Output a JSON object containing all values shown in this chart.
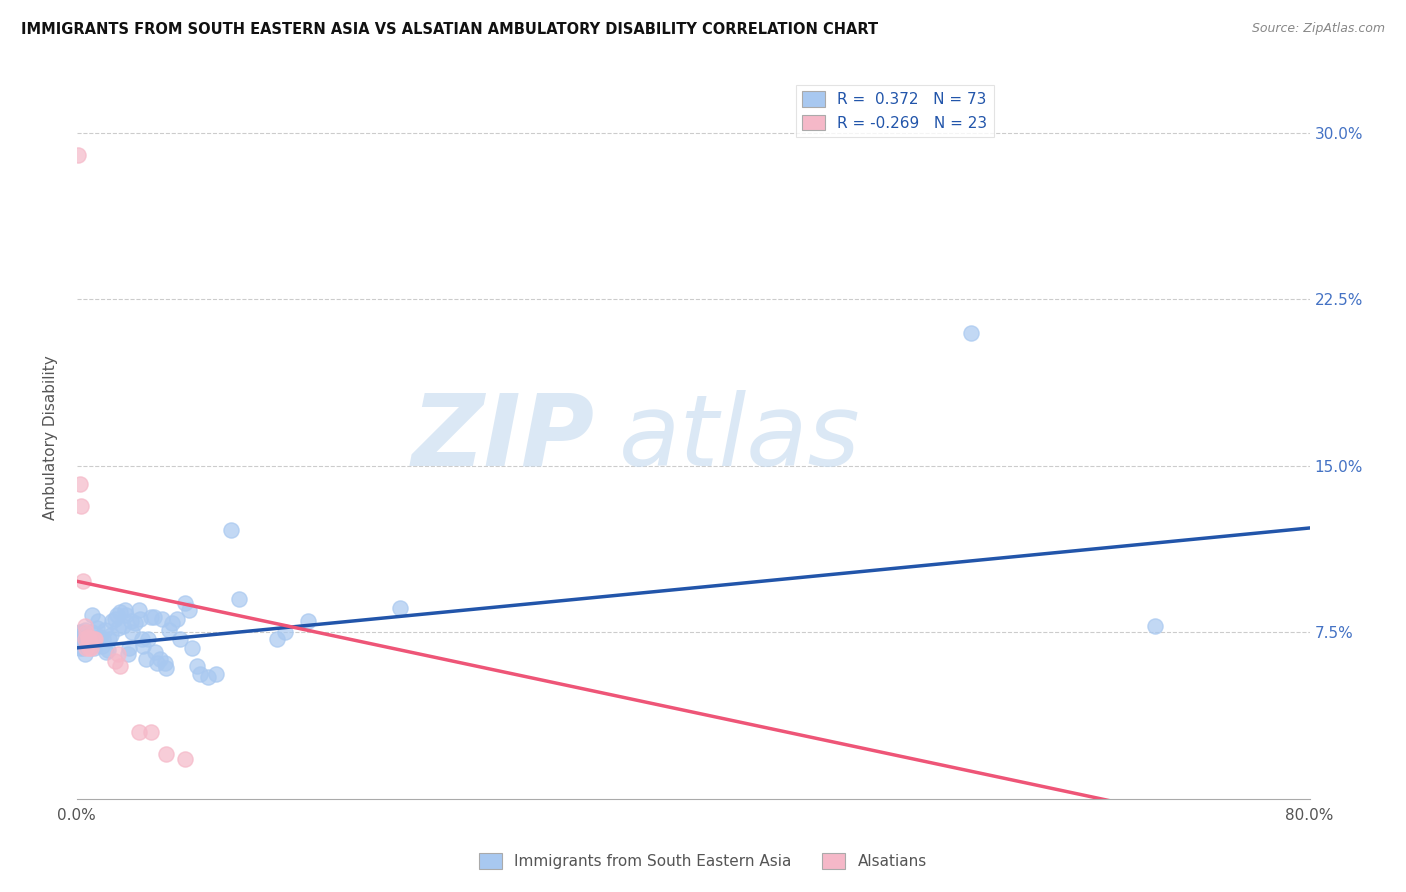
{
  "title": "IMMIGRANTS FROM SOUTH EASTERN ASIA VS ALSATIAN AMBULATORY DISABILITY CORRELATION CHART",
  "source": "Source: ZipAtlas.com",
  "ylabel": "Ambulatory Disability",
  "xlim": [
    0.0,
    0.8
  ],
  "ylim": [
    0.0,
    0.325
  ],
  "xticks": [
    0.0,
    0.1,
    0.2,
    0.3,
    0.4,
    0.5,
    0.6,
    0.7,
    0.8
  ],
  "yticks_right": [
    0.075,
    0.15,
    0.225,
    0.3
  ],
  "yticklabels_right": [
    "7.5%",
    "15.0%",
    "22.5%",
    "30.0%"
  ],
  "watermark_zip": "ZIP",
  "watermark_atlas": "atlas",
  "blue_color": "#A8C8F0",
  "pink_color": "#F5B8C8",
  "blue_line_color": "#2255AA",
  "pink_line_color": "#EE5577",
  "scatter_blue": [
    [
      0.001,
      0.072
    ],
    [
      0.002,
      0.068
    ],
    [
      0.002,
      0.075
    ],
    [
      0.003,
      0.075
    ],
    [
      0.003,
      0.07
    ],
    [
      0.004,
      0.068
    ],
    [
      0.004,
      0.072
    ],
    [
      0.005,
      0.065
    ],
    [
      0.005,
      0.076
    ],
    [
      0.006,
      0.073
    ],
    [
      0.007,
      0.07
    ],
    [
      0.008,
      0.072
    ],
    [
      0.009,
      0.069
    ],
    [
      0.01,
      0.075
    ],
    [
      0.01,
      0.083
    ],
    [
      0.011,
      0.068
    ],
    [
      0.012,
      0.071
    ],
    [
      0.013,
      0.077
    ],
    [
      0.014,
      0.08
    ],
    [
      0.015,
      0.073
    ],
    [
      0.016,
      0.069
    ],
    [
      0.017,
      0.072
    ],
    [
      0.018,
      0.076
    ],
    [
      0.019,
      0.066
    ],
    [
      0.02,
      0.067
    ],
    [
      0.021,
      0.072
    ],
    [
      0.022,
      0.074
    ],
    [
      0.023,
      0.08
    ],
    [
      0.025,
      0.081
    ],
    [
      0.026,
      0.083
    ],
    [
      0.027,
      0.077
    ],
    [
      0.028,
      0.084
    ],
    [
      0.03,
      0.078
    ],
    [
      0.031,
      0.085
    ],
    [
      0.032,
      0.083
    ],
    [
      0.033,
      0.065
    ],
    [
      0.034,
      0.068
    ],
    [
      0.035,
      0.08
    ],
    [
      0.036,
      0.075
    ],
    [
      0.038,
      0.079
    ],
    [
      0.04,
      0.085
    ],
    [
      0.041,
      0.081
    ],
    [
      0.042,
      0.072
    ],
    [
      0.043,
      0.069
    ],
    [
      0.045,
      0.063
    ],
    [
      0.046,
      0.072
    ],
    [
      0.048,
      0.082
    ],
    [
      0.05,
      0.082
    ],
    [
      0.051,
      0.066
    ],
    [
      0.052,
      0.061
    ],
    [
      0.054,
      0.063
    ],
    [
      0.055,
      0.081
    ],
    [
      0.057,
      0.061
    ],
    [
      0.058,
      0.059
    ],
    [
      0.06,
      0.076
    ],
    [
      0.062,
      0.079
    ],
    [
      0.065,
      0.081
    ],
    [
      0.067,
      0.072
    ],
    [
      0.07,
      0.088
    ],
    [
      0.073,
      0.085
    ],
    [
      0.075,
      0.068
    ],
    [
      0.078,
      0.06
    ],
    [
      0.08,
      0.056
    ],
    [
      0.085,
      0.055
    ],
    [
      0.09,
      0.056
    ],
    [
      0.1,
      0.121
    ],
    [
      0.105,
      0.09
    ],
    [
      0.13,
      0.072
    ],
    [
      0.135,
      0.075
    ],
    [
      0.15,
      0.08
    ],
    [
      0.21,
      0.086
    ],
    [
      0.58,
      0.21
    ],
    [
      0.7,
      0.078
    ]
  ],
  "scatter_pink": [
    [
      0.001,
      0.29
    ],
    [
      0.002,
      0.142
    ],
    [
      0.003,
      0.132
    ],
    [
      0.004,
      0.098
    ],
    [
      0.005,
      0.078
    ],
    [
      0.005,
      0.072
    ],
    [
      0.006,
      0.075
    ],
    [
      0.006,
      0.068
    ],
    [
      0.007,
      0.073
    ],
    [
      0.007,
      0.072
    ],
    [
      0.008,
      0.072
    ],
    [
      0.008,
      0.068
    ],
    [
      0.009,
      0.068
    ],
    [
      0.01,
      0.072
    ],
    [
      0.011,
      0.072
    ],
    [
      0.012,
      0.072
    ],
    [
      0.025,
      0.062
    ],
    [
      0.027,
      0.065
    ],
    [
      0.028,
      0.06
    ],
    [
      0.04,
      0.03
    ],
    [
      0.048,
      0.03
    ],
    [
      0.058,
      0.02
    ],
    [
      0.07,
      0.018
    ]
  ],
  "blue_trend": [
    0.0,
    0.8,
    0.068,
    0.122
  ],
  "pink_trend": [
    0.0,
    0.8,
    0.098,
    -0.02
  ]
}
